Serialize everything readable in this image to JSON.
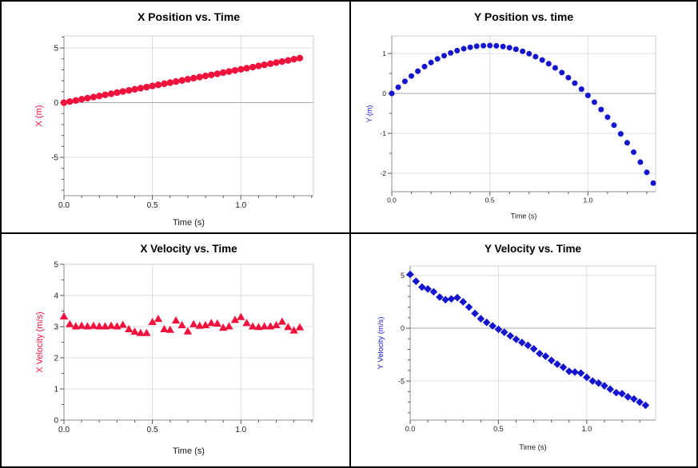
{
  "page": {
    "background": "#ffffff",
    "frame_color": "#000000",
    "grid_color": "#dedede",
    "zero_line_color": "#a9a9a9",
    "axis_color": "#8c8c8c",
    "tick_color": "#555555",
    "tick_label_color": "#1a1a1a",
    "accent_red": "#f0123d",
    "accent_blue": "#1414cf"
  },
  "chart_data": [
    {
      "type": "scatter",
      "title": "X Position vs. Time",
      "xlabel": "Time (s)",
      "ylabel": "X (m)",
      "marker": "circle",
      "color": "#f0123d",
      "legend": "none",
      "grid": true,
      "xlim": [
        0,
        1.41
      ],
      "ylim": [
        -8.5,
        6.1
      ],
      "xticks": [
        0,
        0.5,
        1.0
      ],
      "xtick_labels": [
        "0.0",
        "0.5",
        "1.0"
      ],
      "yticks": [
        5,
        0,
        -5
      ],
      "ytick_labels": [
        "5",
        "0",
        "-5"
      ],
      "x_minor_step": 0.1,
      "y_minor_step": 1,
      "x": [
        0,
        0.033,
        0.067,
        0.1,
        0.133,
        0.167,
        0.2,
        0.233,
        0.267,
        0.3,
        0.333,
        0.367,
        0.4,
        0.433,
        0.467,
        0.5,
        0.533,
        0.567,
        0.6,
        0.633,
        0.667,
        0.7,
        0.733,
        0.767,
        0.8,
        0.833,
        0.867,
        0.9,
        0.933,
        0.967,
        1.0,
        1.033,
        1.067,
        1.1,
        1.133,
        1.167,
        1.2,
        1.233,
        1.267,
        1.3,
        1.333
      ],
      "y": [
        0.0,
        0.1,
        0.2,
        0.31,
        0.41,
        0.51,
        0.61,
        0.71,
        0.81,
        0.92,
        1.02,
        1.12,
        1.22,
        1.32,
        1.42,
        1.53,
        1.63,
        1.73,
        1.83,
        1.93,
        2.03,
        2.14,
        2.24,
        2.34,
        2.44,
        2.54,
        2.64,
        2.75,
        2.85,
        2.95,
        3.05,
        3.15,
        3.25,
        3.36,
        3.46,
        3.56,
        3.66,
        3.76,
        3.86,
        3.97,
        4.07
      ]
    },
    {
      "type": "scatter",
      "title": "Y Position vs. time",
      "xlabel": "Time (s)",
      "ylabel": "Y (m)",
      "marker": "circle",
      "color": "#1414cf",
      "legend": "none",
      "grid": true,
      "xlim": [
        0,
        1.345
      ],
      "ylim": [
        -2.46,
        1.44
      ],
      "xticks": [
        0,
        0.5,
        1.0
      ],
      "xtick_labels": [
        "0.0",
        "0.5",
        "1.0"
      ],
      "yticks": [
        1,
        0,
        -1,
        -2
      ],
      "ytick_labels": [
        "1",
        "0",
        "-1",
        "-2"
      ],
      "x_minor_step": 0.1,
      "y_minor_step": 0.5,
      "x": [
        0,
        0.033,
        0.067,
        0.1,
        0.133,
        0.167,
        0.2,
        0.233,
        0.267,
        0.3,
        0.333,
        0.367,
        0.4,
        0.433,
        0.467,
        0.5,
        0.533,
        0.567,
        0.6,
        0.633,
        0.667,
        0.7,
        0.733,
        0.767,
        0.8,
        0.833,
        0.867,
        0.9,
        0.933,
        0.967,
        1.0,
        1.033,
        1.067,
        1.1,
        1.133,
        1.167,
        1.2,
        1.233,
        1.267,
        1.3,
        1.333
      ],
      "y": [
        0.0,
        0.155,
        0.302,
        0.436,
        0.558,
        0.672,
        0.774,
        0.865,
        0.945,
        1.014,
        1.073,
        1.12,
        1.156,
        1.182,
        1.196,
        1.2,
        1.193,
        1.175,
        1.146,
        1.107,
        1.056,
        0.994,
        0.921,
        0.837,
        0.744,
        0.64,
        0.523,
        0.396,
        0.258,
        0.108,
        -0.05,
        -0.219,
        -0.402,
        -0.594,
        -0.796,
        -1.012,
        -1.236,
        -1.471,
        -1.721,
        -1.976,
        -2.246
      ]
    },
    {
      "type": "scatter",
      "title": "X Velocity vs. Time",
      "xlabel": "Time (s)",
      "ylabel": "X Velocity (m/s)",
      "marker": "triangle",
      "color": "#f0123d",
      "legend": "none",
      "grid": true,
      "xlim": [
        0,
        1.41
      ],
      "ylim": [
        0,
        5
      ],
      "xticks": [
        0,
        0.5,
        1.0
      ],
      "xtick_labels": [
        "0.0",
        "0.5",
        "1.0"
      ],
      "yticks": [
        5,
        4,
        3,
        2,
        1,
        0
      ],
      "ytick_labels": [
        "5",
        "4",
        "3",
        "2",
        "1",
        "0"
      ],
      "x_minor_step": 0.1,
      "y_minor_step": 0.5,
      "x": [
        0,
        0.033,
        0.067,
        0.1,
        0.133,
        0.167,
        0.2,
        0.233,
        0.267,
        0.3,
        0.333,
        0.367,
        0.4,
        0.433,
        0.467,
        0.5,
        0.533,
        0.567,
        0.6,
        0.633,
        0.667,
        0.7,
        0.733,
        0.767,
        0.8,
        0.833,
        0.867,
        0.9,
        0.933,
        0.967,
        1.0,
        1.033,
        1.067,
        1.1,
        1.133,
        1.167,
        1.2,
        1.233,
        1.267,
        1.3,
        1.333
      ],
      "y": [
        3.33,
        3.08,
        3.01,
        3.03,
        3.01,
        3.03,
        3.01,
        3.01,
        3.03,
        3.01,
        3.06,
        2.92,
        2.84,
        2.8,
        2.8,
        3.15,
        3.25,
        2.92,
        2.9,
        3.2,
        3.05,
        2.85,
        3.08,
        3.03,
        3.05,
        3.12,
        3.1,
        2.97,
        3.01,
        3.22,
        3.31,
        3.12,
        3.01,
        2.99,
        3.01,
        3.01,
        3.05,
        3.16,
        2.99,
        2.88,
        2.98
      ]
    },
    {
      "type": "scatter",
      "title": "Y Velocity vs. Time",
      "xlabel": "Time (s)",
      "ylabel": "Y Velocity (m/s)",
      "marker": "diamond",
      "color": "#1414cf",
      "legend": "none",
      "grid": true,
      "xlim": [
        0,
        1.39
      ],
      "ylim": [
        -8.7,
        5.9
      ],
      "xticks": [
        0,
        0.5,
        1.0
      ],
      "xtick_labels": [
        "0.0",
        "0.5",
        "1.0"
      ],
      "yticks": [
        5,
        0,
        -5
      ],
      "ytick_labels": [
        "5",
        "0",
        "-5"
      ],
      "x_minor_step": 0.1,
      "y_minor_step": 1,
      "x": [
        0,
        0.033,
        0.067,
        0.1,
        0.133,
        0.167,
        0.2,
        0.233,
        0.267,
        0.3,
        0.333,
        0.367,
        0.4,
        0.433,
        0.467,
        0.5,
        0.533,
        0.567,
        0.6,
        0.633,
        0.667,
        0.7,
        0.733,
        0.767,
        0.8,
        0.833,
        0.867,
        0.9,
        0.933,
        0.967,
        1.0,
        1.033,
        1.067,
        1.1,
        1.133,
        1.167,
        1.2,
        1.233,
        1.267,
        1.3,
        1.333
      ],
      "y": [
        5.1,
        4.45,
        3.9,
        3.72,
        3.45,
        2.95,
        2.7,
        2.78,
        2.9,
        2.5,
        2.0,
        1.4,
        0.9,
        0.55,
        0.22,
        -0.1,
        -0.38,
        -0.72,
        -1.05,
        -1.35,
        -1.62,
        -1.95,
        -2.4,
        -2.65,
        -3.05,
        -3.4,
        -3.7,
        -4.08,
        -4.15,
        -4.25,
        -4.65,
        -5.0,
        -5.2,
        -5.45,
        -5.77,
        -6.1,
        -6.2,
        -6.5,
        -6.7,
        -7.0,
        -7.3
      ]
    }
  ]
}
